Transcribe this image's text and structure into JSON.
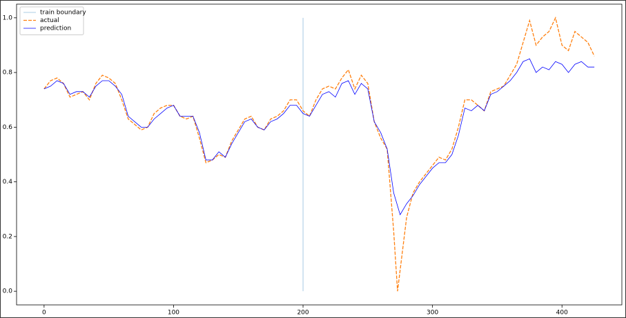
{
  "chart_data": {
    "type": "line",
    "xlim": [
      -21.25,
      446.25
    ],
    "ylim": [
      -0.05,
      1.05
    ],
    "xticks": [
      0,
      100,
      200,
      300,
      400
    ],
    "yticks": [
      {
        "value": 0,
        "label": "0.0"
      },
      0.2,
      0.4,
      0.6,
      0.8,
      {
        "value": 1,
        "label": "1.0"
      }
    ],
    "legend": "upper left",
    "series": [
      {
        "name": "train boundary",
        "color": "#8fbbdd",
        "dash": false,
        "x": [
          200,
          200
        ],
        "values": [
          0,
          1
        ]
      },
      {
        "name": "actual",
        "color": "#ff7f0e",
        "dash": true,
        "x": [
          0,
          5,
          10,
          15,
          20,
          25,
          30,
          35,
          40,
          45,
          50,
          55,
          60,
          65,
          70,
          75,
          80,
          85,
          90,
          95,
          100,
          105,
          110,
          115,
          120,
          125,
          130,
          135,
          140,
          145,
          150,
          155,
          160,
          165,
          170,
          175,
          180,
          185,
          190,
          195,
          200,
          205,
          210,
          215,
          220,
          225,
          230,
          235,
          240,
          245,
          250,
          255,
          260,
          265,
          270,
          273,
          280,
          285,
          290,
          295,
          300,
          305,
          310,
          315,
          320,
          325,
          330,
          335,
          340,
          345,
          350,
          355,
          360,
          365,
          370,
          375,
          380,
          385,
          390,
          395,
          400,
          405,
          410,
          415,
          420,
          425
        ],
        "values": [
          0.74,
          0.77,
          0.78,
          0.76,
          0.71,
          0.72,
          0.73,
          0.7,
          0.76,
          0.79,
          0.78,
          0.76,
          0.7,
          0.63,
          0.61,
          0.59,
          0.6,
          0.65,
          0.67,
          0.68,
          0.68,
          0.64,
          0.63,
          0.64,
          0.56,
          0.47,
          0.48,
          0.5,
          0.49,
          0.55,
          0.59,
          0.63,
          0.64,
          0.6,
          0.59,
          0.63,
          0.64,
          0.66,
          0.7,
          0.7,
          0.66,
          0.64,
          0.7,
          0.74,
          0.75,
          0.74,
          0.78,
          0.81,
          0.74,
          0.79,
          0.76,
          0.62,
          0.56,
          0.52,
          0.22,
          0.0,
          0.27,
          0.36,
          0.4,
          0.43,
          0.46,
          0.49,
          0.48,
          0.52,
          0.6,
          0.7,
          0.7,
          0.68,
          0.66,
          0.73,
          0.74,
          0.75,
          0.79,
          0.83,
          0.91,
          0.99,
          0.9,
          0.93,
          0.95,
          1.0,
          0.9,
          0.88,
          0.95,
          0.93,
          0.91,
          0.86
        ]
      },
      {
        "name": "prediction",
        "color": "#0000ff",
        "dash": false,
        "x": [
          0,
          5,
          10,
          15,
          20,
          25,
          30,
          35,
          40,
          45,
          50,
          55,
          60,
          65,
          70,
          75,
          80,
          85,
          90,
          95,
          100,
          105,
          110,
          115,
          120,
          125,
          130,
          135,
          140,
          145,
          150,
          155,
          160,
          165,
          170,
          175,
          180,
          185,
          190,
          195,
          200,
          205,
          210,
          215,
          220,
          225,
          230,
          235,
          240,
          245,
          250,
          255,
          260,
          265,
          270,
          275,
          280,
          285,
          290,
          295,
          300,
          305,
          310,
          315,
          320,
          325,
          330,
          335,
          340,
          345,
          350,
          355,
          360,
          365,
          370,
          375,
          380,
          385,
          390,
          395,
          400,
          405,
          410,
          415,
          420,
          425
        ],
        "values": [
          0.74,
          0.75,
          0.77,
          0.76,
          0.72,
          0.73,
          0.73,
          0.71,
          0.75,
          0.77,
          0.77,
          0.75,
          0.72,
          0.64,
          0.62,
          0.6,
          0.6,
          0.63,
          0.65,
          0.67,
          0.68,
          0.64,
          0.64,
          0.64,
          0.58,
          0.48,
          0.48,
          0.51,
          0.49,
          0.54,
          0.58,
          0.62,
          0.63,
          0.6,
          0.59,
          0.62,
          0.63,
          0.65,
          0.68,
          0.68,
          0.65,
          0.64,
          0.68,
          0.72,
          0.73,
          0.71,
          0.76,
          0.77,
          0.72,
          0.76,
          0.74,
          0.62,
          0.58,
          0.52,
          0.36,
          0.28,
          0.32,
          0.35,
          0.39,
          0.42,
          0.45,
          0.47,
          0.47,
          0.5,
          0.57,
          0.67,
          0.66,
          0.68,
          0.66,
          0.72,
          0.73,
          0.75,
          0.77,
          0.8,
          0.84,
          0.85,
          0.8,
          0.82,
          0.81,
          0.84,
          0.83,
          0.8,
          0.83,
          0.84,
          0.82,
          0.82
        ]
      }
    ]
  }
}
